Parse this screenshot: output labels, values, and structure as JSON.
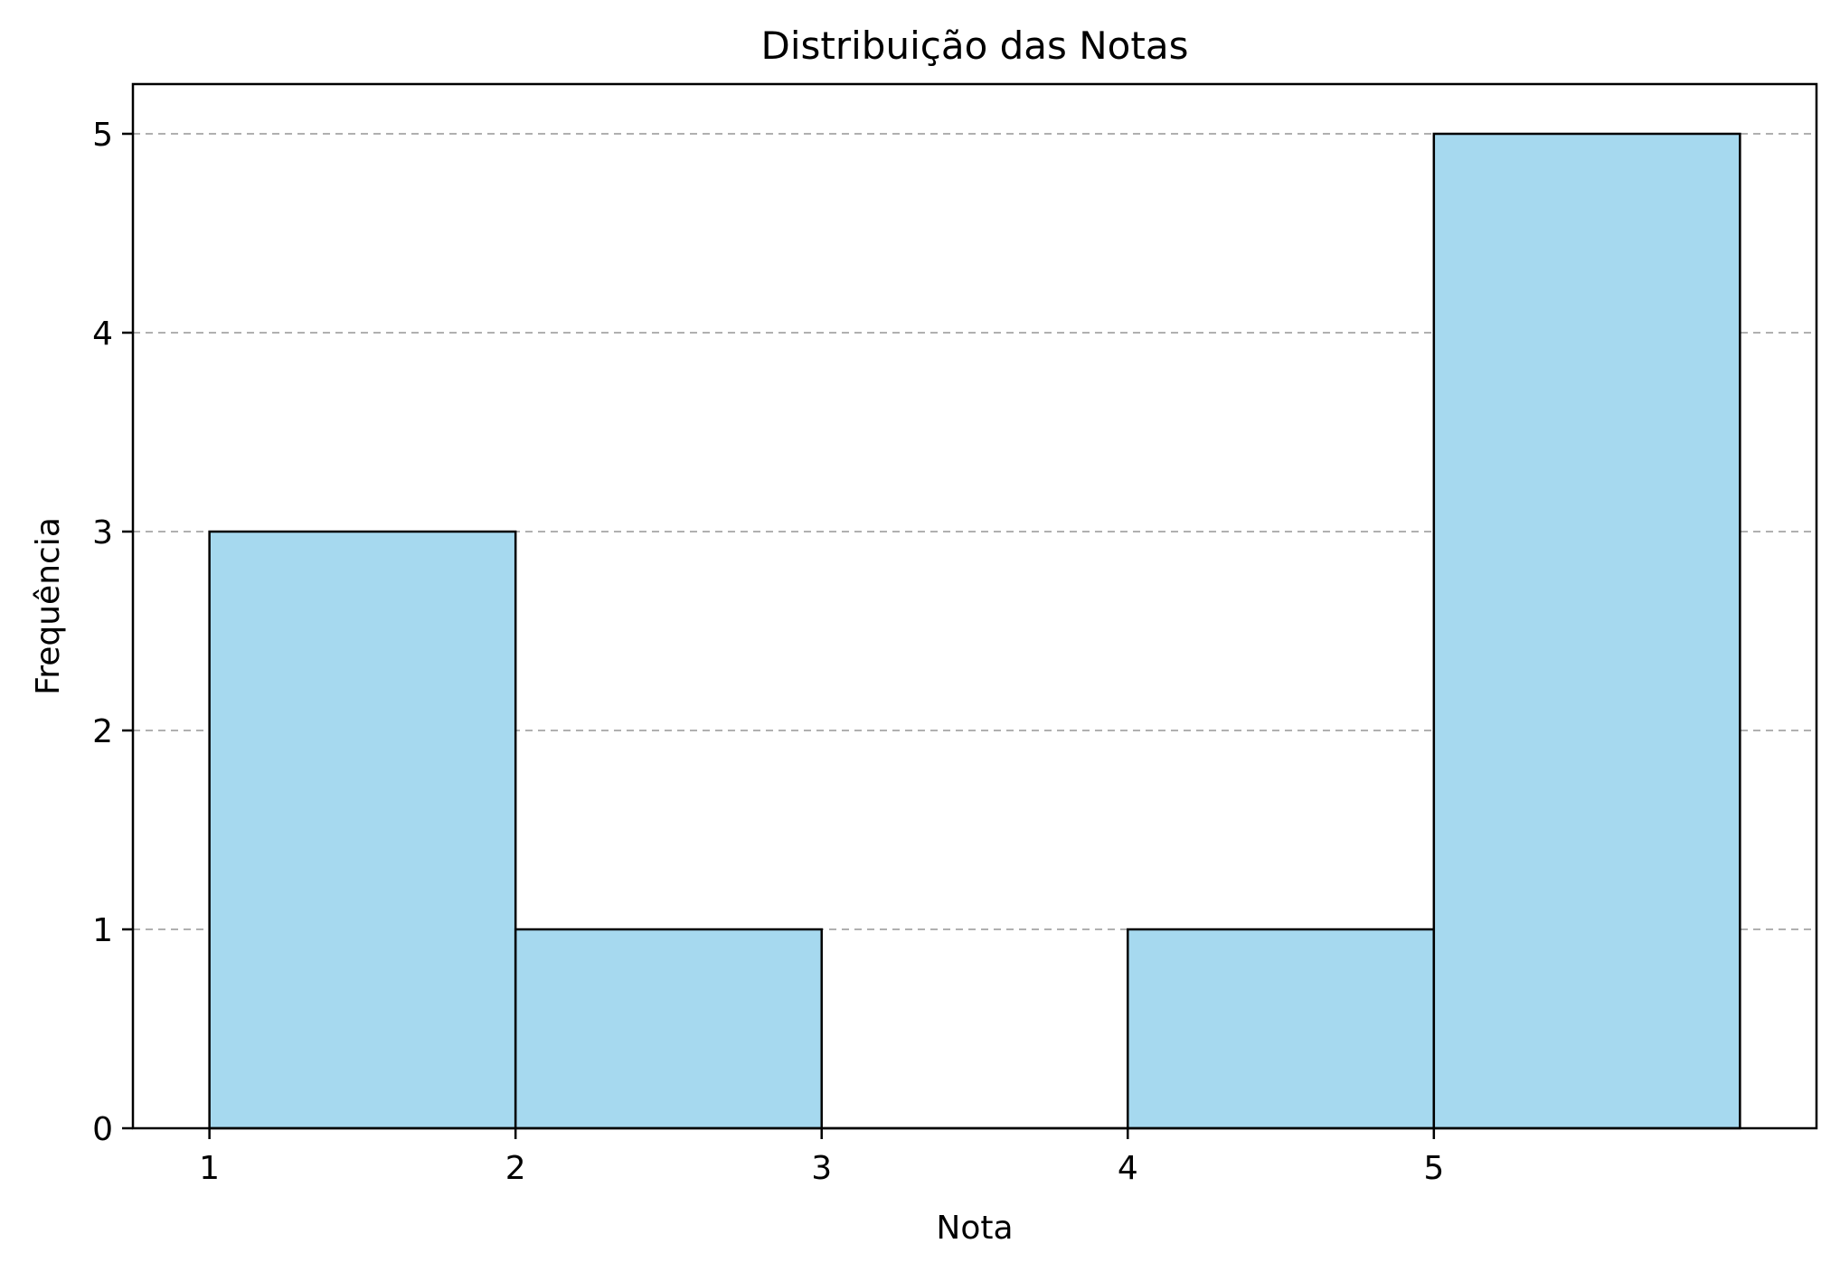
{
  "chart_data": {
    "type": "bar",
    "title": "Distribuição das Notas",
    "xlabel": "Nota",
    "ylabel": "Frequência",
    "bins": [
      {
        "start": 1,
        "end": 2,
        "value": 3
      },
      {
        "start": 2,
        "end": 3,
        "value": 1
      },
      {
        "start": 3,
        "end": 4,
        "value": 0
      },
      {
        "start": 4,
        "end": 5,
        "value": 1
      },
      {
        "start": 5,
        "end": 6,
        "value": 5
      }
    ],
    "xticks": [
      1,
      2,
      3,
      4,
      5
    ],
    "yticks": [
      0,
      1,
      2,
      3,
      4,
      5
    ],
    "xlim": [
      0.75,
      6.25
    ],
    "ylim": [
      0,
      5.25
    ],
    "grid": "y-dashed",
    "bar_color": "#a6d9ef",
    "edge_color": "#000000",
    "grid_color": "#b0b0b0"
  }
}
